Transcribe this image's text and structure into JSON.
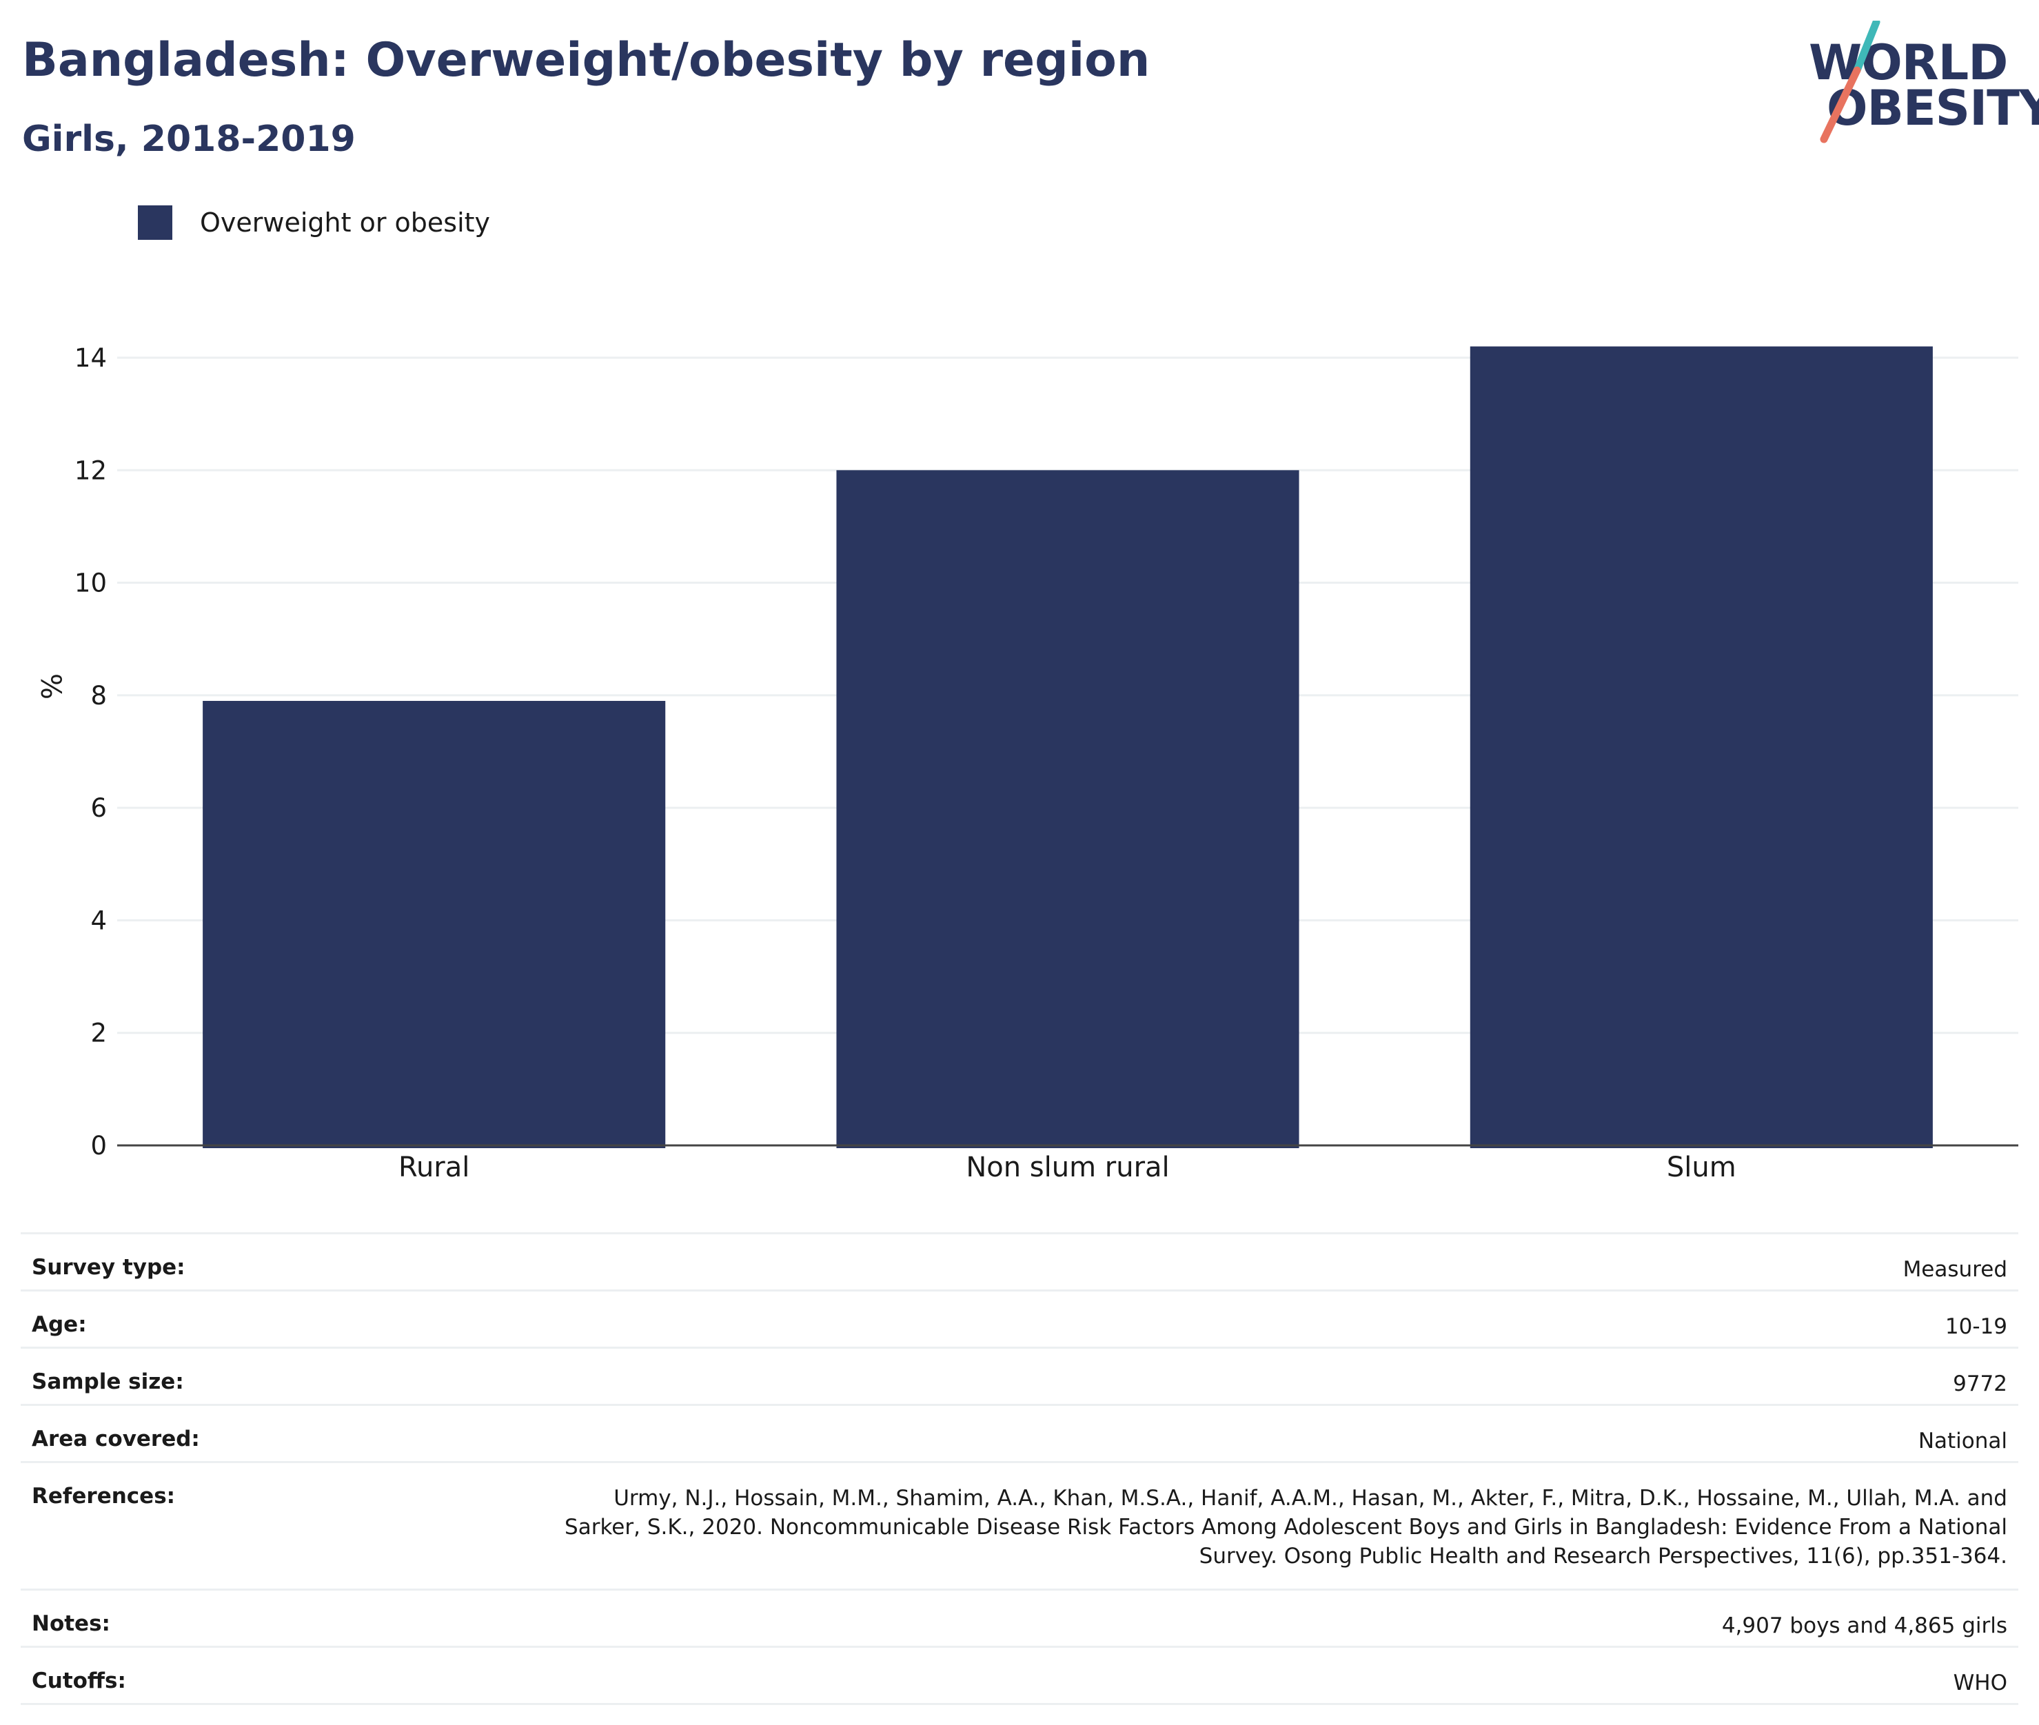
{
  "header": {
    "title": "Bangladesh: Overweight/obesity by region",
    "subtitle": "Girls, 2018-2019"
  },
  "logo": {
    "line1": "WORLD",
    "line2": "OBESITY",
    "colors": {
      "text": "#2a365f",
      "slash_top": "#3fb8b8",
      "slash_bottom": "#e8735f"
    }
  },
  "chart_data": {
    "type": "bar",
    "categories": [
      "Rural",
      "Non slum rural",
      "Slum"
    ],
    "series": [
      {
        "name": "Overweight or obesity",
        "color": "#2a365f",
        "values": [
          7.9,
          12.0,
          14.2
        ]
      }
    ],
    "ylabel": "%",
    "xlabel": "",
    "ylim": [
      0,
      14.6
    ],
    "yticks": [
      0,
      2,
      4,
      6,
      8,
      10,
      12,
      14
    ],
    "grid": true,
    "legend_position": "top-left"
  },
  "metadata": [
    {
      "key": "Survey type:",
      "value": "Measured"
    },
    {
      "key": "Age:",
      "value": "10-19"
    },
    {
      "key": "Sample size:",
      "value": "9772"
    },
    {
      "key": "Area covered:",
      "value": "National"
    },
    {
      "key": "References:",
      "value": "Urmy, N.J., Hossain, M.M., Shamim, A.A., Khan, M.S.A., Hanif, A.A.M., Hasan, M., Akter, F., Mitra, D.K., Hossaine, M., Ullah, M.A. and Sarker, S.K., 2020. Noncommunicable Disease Risk Factors Among Adolescent Boys and Girls in Bangladesh: Evidence From a National Survey. Osong Public Health and Research Perspectives, 11(6), pp.351-364."
    },
    {
      "key": "Notes:",
      "value": "4,907 boys and 4,865 girls"
    },
    {
      "key": "Cutoffs:",
      "value": "WHO"
    }
  ]
}
